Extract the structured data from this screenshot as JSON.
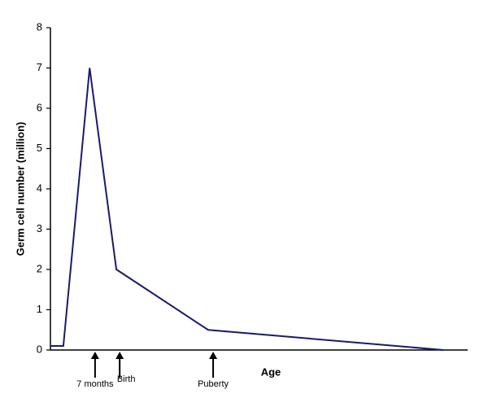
{
  "chart_data": {
    "type": "line",
    "y_label": "Germ cell number (million)",
    "x_label": "Age",
    "x": [
      0,
      3.1,
      9.4,
      15.8,
      37.8,
      94.2
    ],
    "values": [
      0.1,
      0.1,
      7,
      2,
      0.5,
      0
    ],
    "color": "#1a1a6e",
    "xlim": [
      0,
      100
    ],
    "ylim": [
      0,
      8
    ],
    "yticks": [
      0,
      1,
      2,
      3,
      4,
      5,
      6,
      7,
      8
    ],
    "annotations": [
      {
        "text": "7 months",
        "x": 10.7
      },
      {
        "text": "Birth",
        "x": 16.6
      },
      {
        "text": "Puberty",
        "x": 39.0
      }
    ]
  }
}
